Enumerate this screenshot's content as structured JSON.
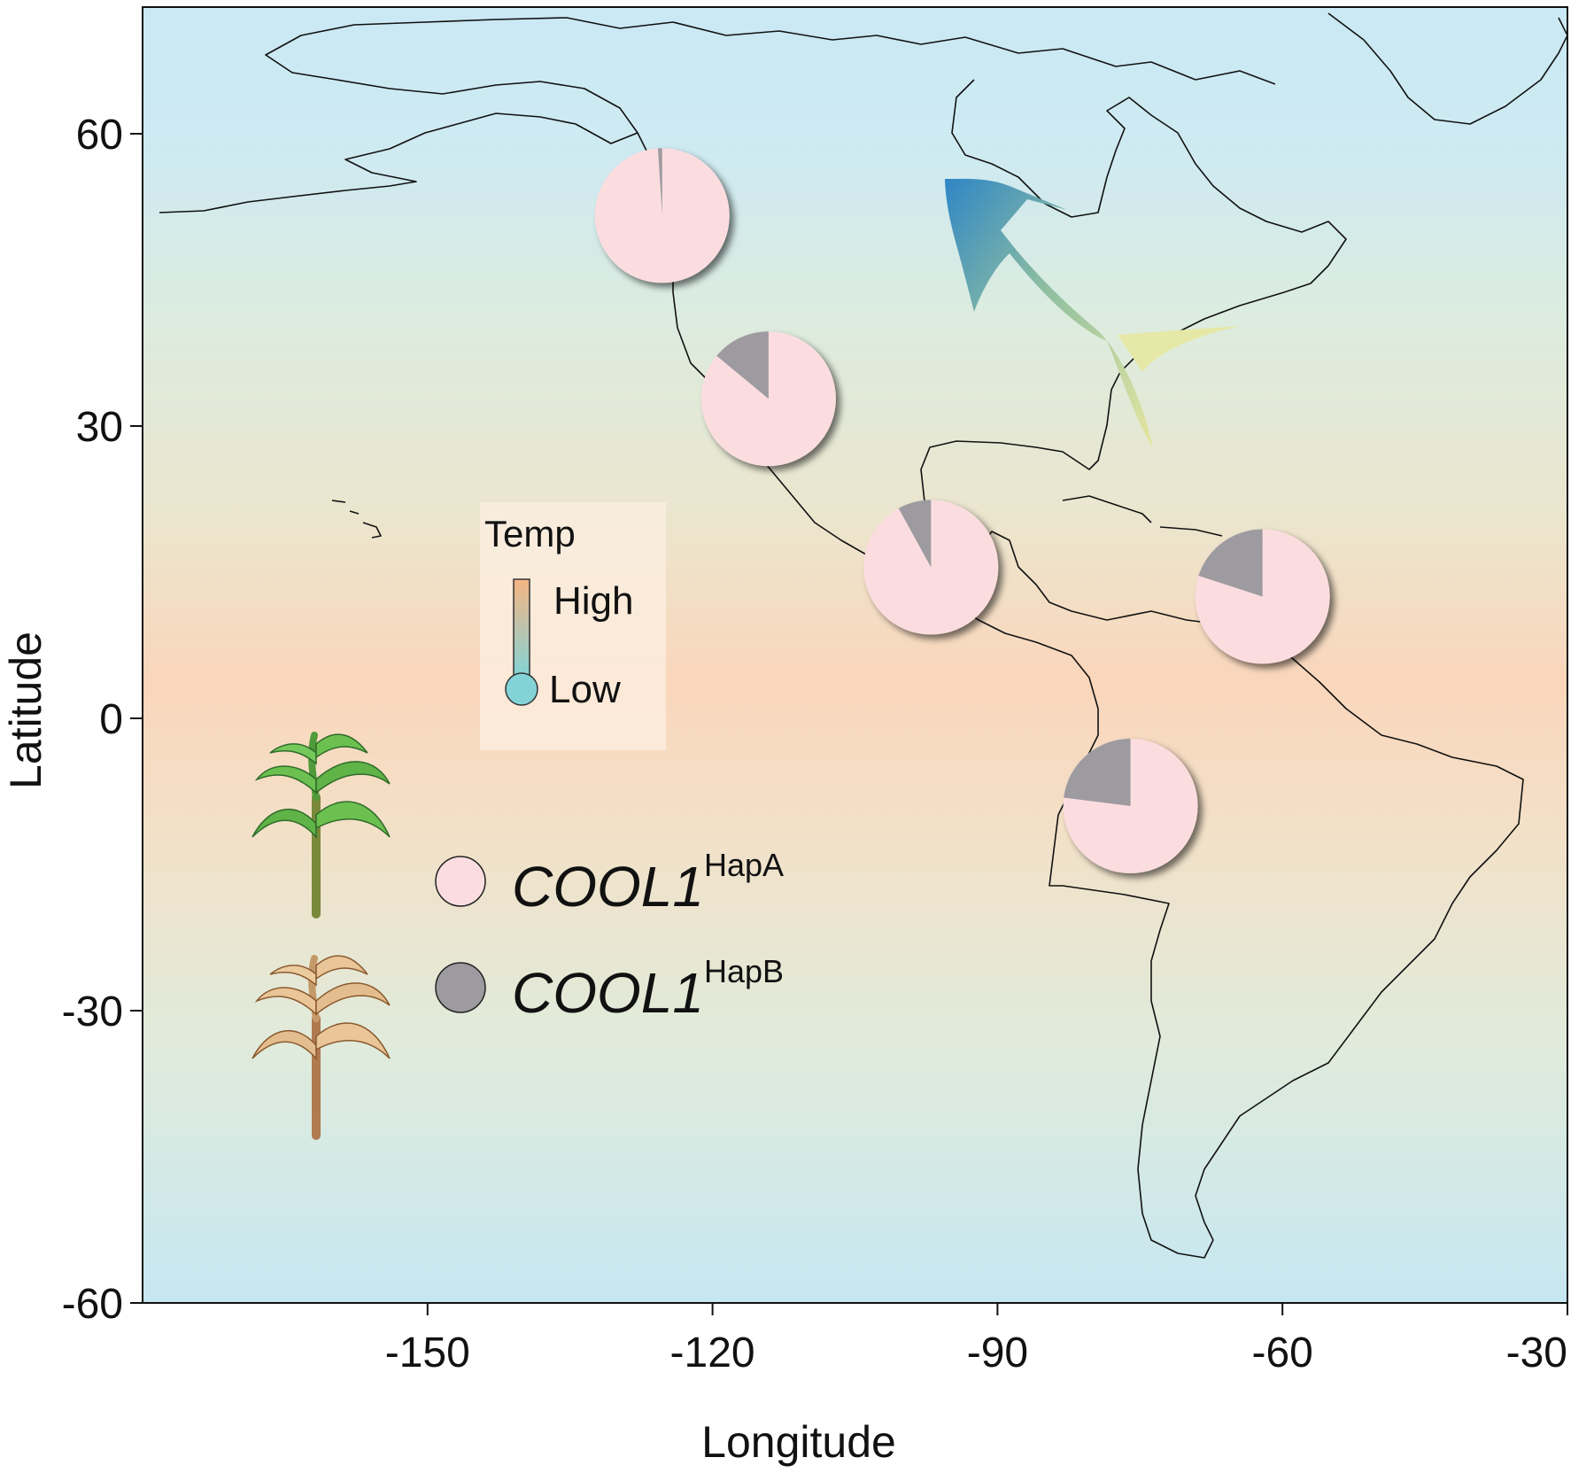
{
  "chart_data": {
    "type": "map-pie",
    "title": "",
    "xlabel": "Longitude",
    "ylabel": "Latitude",
    "xlim": [
      -180,
      -30
    ],
    "ylim": [
      -60,
      73
    ],
    "x_ticks": [
      -150,
      -120,
      -90,
      -60,
      -30
    ],
    "y_ticks": [
      60,
      30,
      0,
      -30,
      -60
    ],
    "grid": false,
    "background": "latitude temperature gradient (cool poles, warm equator)",
    "temperature_legend": {
      "title": "Temp",
      "high_label": "High",
      "low_label": "Low",
      "high_color": "#f6b583",
      "low_color": "#83d3d6"
    },
    "haplotype_legend": [
      {
        "gene": "COOL1",
        "haplotype": "HapA",
        "color": "#fbdde0"
      },
      {
        "gene": "COOL1",
        "haplotype": "HapB",
        "color": "#9d9ba0"
      }
    ],
    "pies": [
      {
        "lon": -125.3,
        "lat": 51.6,
        "hapA": 0.99,
        "hapB": 0.01
      },
      {
        "lon": -114.1,
        "lat": 32.8,
        "hapA": 0.86,
        "hapB": 0.14
      },
      {
        "lon": -97.0,
        "lat": 15.5,
        "hapA": 0.92,
        "hapB": 0.08
      },
      {
        "lon": -62.1,
        "lat": 12.5,
        "hapA": 0.8,
        "hapB": 0.2
      },
      {
        "lon": -76.0,
        "lat": -9.0,
        "hapA": 0.77,
        "hapB": 0.23
      }
    ],
    "annotation": "arrow indicating northward spread from warm to cool regions",
    "plant_icons": [
      "green-maize-plant",
      "dry-maize-plant"
    ]
  }
}
